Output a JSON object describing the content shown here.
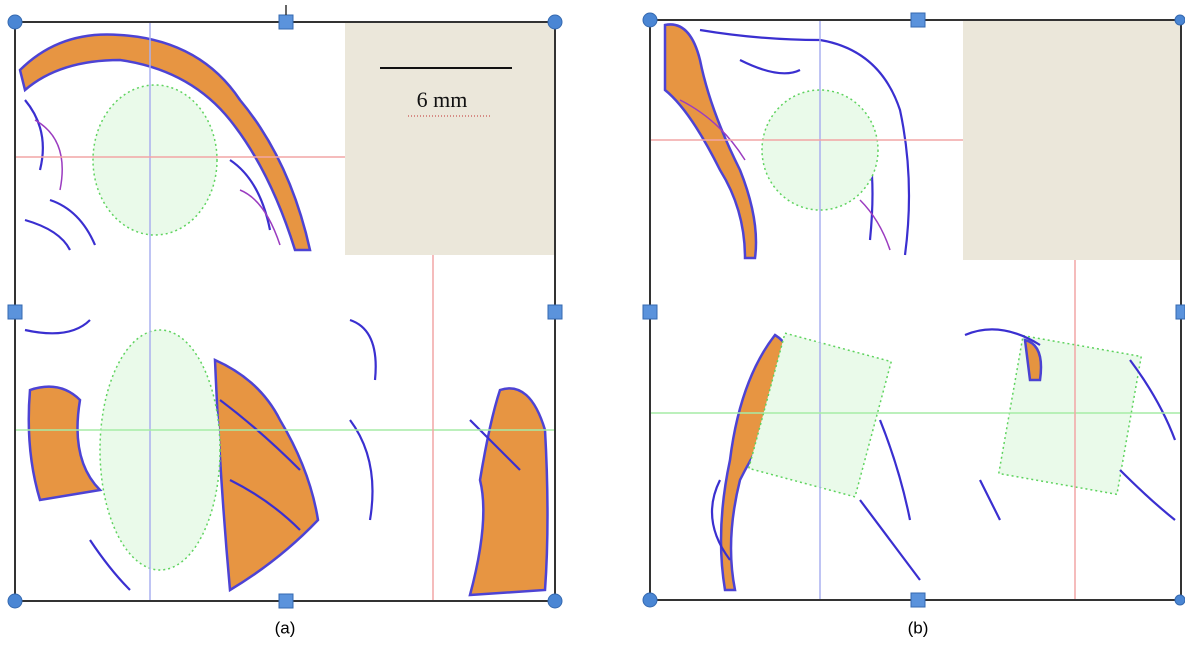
{
  "panels": [
    {
      "scale_bar": "6 mm",
      "caption": "(a)"
    },
    {
      "caption": "(b)"
    }
  ]
}
